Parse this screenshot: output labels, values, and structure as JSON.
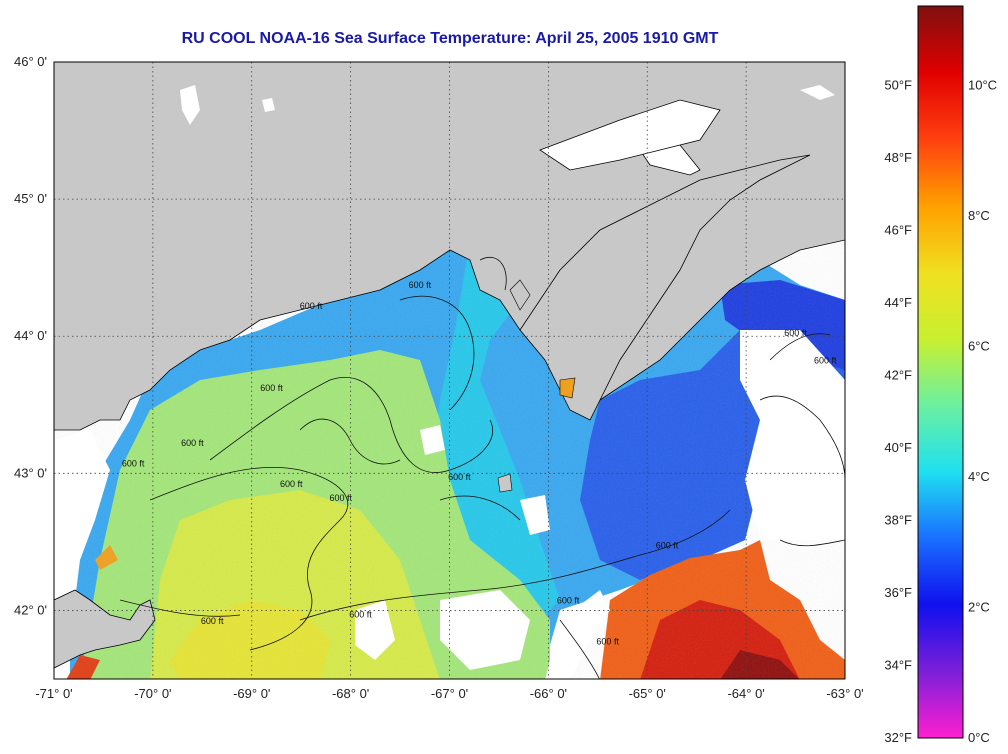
{
  "title": "RU COOL  NOAA-16  Sea Surface Temperature:  April 25, 2005 1910 GMT",
  "map": {
    "lon_range": [
      -71,
      -63
    ],
    "lat_range": [
      41.5,
      46
    ],
    "grid": true,
    "lon_ticks": [
      {
        "value": -71,
        "label": "-71° 0'"
      },
      {
        "value": -70,
        "label": "-70° 0'"
      },
      {
        "value": -69,
        "label": "-69° 0'"
      },
      {
        "value": -68,
        "label": "-68° 0'"
      },
      {
        "value": -67,
        "label": "-67° 0'"
      },
      {
        "value": -66,
        "label": "-66° 0'"
      },
      {
        "value": -65,
        "label": "-65° 0'"
      },
      {
        "value": -64,
        "label": "-64° 0'"
      },
      {
        "value": -63,
        "label": "-63° 0'"
      }
    ],
    "lat_ticks": [
      {
        "value": 46,
        "label": "46° 0'"
      },
      {
        "value": 45,
        "label": "45° 0'"
      },
      {
        "value": 44,
        "label": "44° 0'"
      },
      {
        "value": 43,
        "label": "43° 0'"
      },
      {
        "value": 42,
        "label": "42° 0'"
      }
    ],
    "contour_labels": [
      {
        "text": "600 ft",
        "lon": -65.8,
        "lat": 42.05
      },
      {
        "text": "600 ft",
        "lon": -67.9,
        "lat": 41.95
      },
      {
        "text": "600 ft",
        "lon": -69.4,
        "lat": 41.9
      },
      {
        "text": "600 ft",
        "lon": -70.2,
        "lat": 43.05
      },
      {
        "text": "600 ft",
        "lon": -69.6,
        "lat": 43.2
      },
      {
        "text": "600 ft",
        "lon": -68.8,
        "lat": 43.6
      },
      {
        "text": "600 ft",
        "lon": -68.4,
        "lat": 44.2
      },
      {
        "text": "600 ft",
        "lon": -67.3,
        "lat": 44.35
      },
      {
        "text": "600 ft",
        "lon": -68.6,
        "lat": 42.9
      },
      {
        "text": "600 ft",
        "lon": -68.1,
        "lat": 42.8
      },
      {
        "text": "600 ft",
        "lon": -66.9,
        "lat": 42.95
      },
      {
        "text": "600 ft",
        "lon": -64.8,
        "lat": 42.45
      },
      {
        "text": "600 ft",
        "lon": -63.5,
        "lat": 44.0
      },
      {
        "text": "600 ft",
        "lon": -63.2,
        "lat": 43.8
      },
      {
        "text": "600 ft",
        "lon": -65.4,
        "lat": 41.75
      }
    ]
  },
  "colorbar": {
    "fahrenheit": [
      {
        "value": 32,
        "label": "32°F"
      },
      {
        "value": 34,
        "label": "34°F"
      },
      {
        "value": 36,
        "label": "36°F"
      },
      {
        "value": 38,
        "label": "38°F"
      },
      {
        "value": 40,
        "label": "40°F"
      },
      {
        "value": 42,
        "label": "42°F"
      },
      {
        "value": 44,
        "label": "44°F"
      },
      {
        "value": 46,
        "label": "46°F"
      },
      {
        "value": 48,
        "label": "48°F"
      },
      {
        "value": 50,
        "label": "50°F"
      }
    ],
    "celsius": [
      {
        "value": 0,
        "label": "0°C"
      },
      {
        "value": 2,
        "label": "2°C"
      },
      {
        "value": 4,
        "label": "4°C"
      },
      {
        "value": 6,
        "label": "6°C"
      },
      {
        "value": 8,
        "label": "8°C"
      },
      {
        "value": 10,
        "label": "10°C"
      }
    ],
    "range_f": [
      32,
      52.2
    ],
    "colors": [
      "#ff1fd0",
      "#7b1fd8",
      "#1010ee",
      "#1a6fff",
      "#1fe0f0",
      "#6cf0a0",
      "#c8f030",
      "#f0e020",
      "#ffa000",
      "#ff4010",
      "#e00000",
      "#801010"
    ]
  },
  "colors": {
    "land": "#c8c8c8",
    "cloud": "#ffffff",
    "coast": "#000000"
  }
}
